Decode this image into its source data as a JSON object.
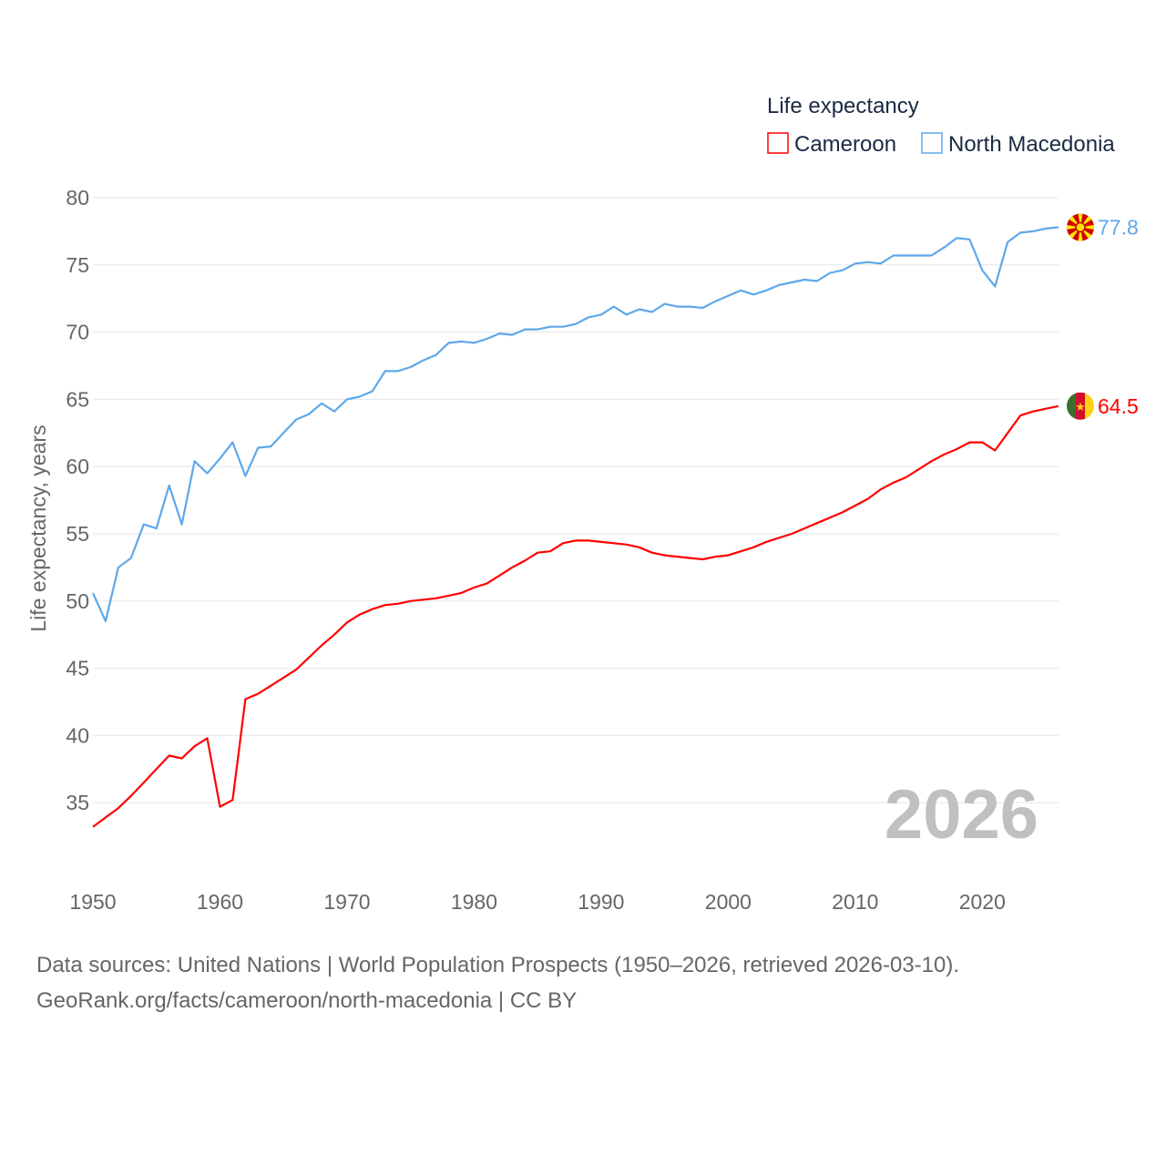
{
  "chart_data": {
    "type": "line",
    "xlabel": "",
    "ylabel": "Life expectancy, years",
    "xlim": [
      1950,
      2026
    ],
    "ylim": [
      32,
      80
    ],
    "yticks": [
      35,
      40,
      45,
      50,
      55,
      60,
      65,
      70,
      75,
      80
    ],
    "xticks": [
      1950,
      1960,
      1970,
      1980,
      1990,
      2000,
      2010,
      2020
    ],
    "grid": true,
    "legend": {
      "title": "Life expectancy",
      "position": "top-right"
    },
    "year_label": "2026",
    "x": [
      1950,
      1951,
      1952,
      1953,
      1954,
      1955,
      1956,
      1957,
      1958,
      1959,
      1960,
      1961,
      1962,
      1963,
      1964,
      1965,
      1966,
      1967,
      1968,
      1969,
      1970,
      1971,
      1972,
      1973,
      1974,
      1975,
      1976,
      1977,
      1978,
      1979,
      1980,
      1981,
      1982,
      1983,
      1984,
      1985,
      1986,
      1987,
      1988,
      1989,
      1990,
      1991,
      1992,
      1993,
      1994,
      1995,
      1996,
      1997,
      1998,
      1999,
      2000,
      2001,
      2002,
      2003,
      2004,
      2005,
      2006,
      2007,
      2008,
      2009,
      2010,
      2011,
      2012,
      2013,
      2014,
      2015,
      2016,
      2017,
      2018,
      2019,
      2020,
      2021,
      2022,
      2023,
      2024,
      2025,
      2026
    ],
    "series": [
      {
        "name": "Cameroon",
        "color": "#ff0000",
        "end_label": "64.5",
        "flag": "cameroon-flag",
        "values": [
          33.2,
          33.9,
          34.6,
          35.5,
          36.5,
          37.5,
          38.5,
          38.3,
          39.2,
          39.8,
          34.7,
          35.2,
          42.7,
          43.1,
          43.7,
          44.3,
          44.9,
          45.8,
          46.7,
          47.5,
          48.4,
          49.0,
          49.4,
          49.7,
          49.8,
          50.0,
          50.1,
          50.2,
          50.4,
          50.6,
          51.0,
          51.3,
          51.9,
          52.5,
          53.0,
          53.6,
          53.7,
          54.3,
          54.5,
          54.5,
          54.4,
          54.3,
          54.2,
          54.0,
          53.6,
          53.4,
          53.3,
          53.2,
          53.1,
          53.3,
          53.4,
          53.7,
          54.0,
          54.4,
          54.7,
          55.0,
          55.4,
          55.8,
          56.2,
          56.6,
          57.1,
          57.6,
          58.3,
          58.8,
          59.2,
          59.8,
          60.4,
          60.9,
          61.3,
          61.8,
          61.8,
          61.2,
          62.5,
          63.8,
          64.1,
          64.3,
          64.5
        ]
      },
      {
        "name": "North Macedonia",
        "color": "#5ea8ea",
        "end_label": "77.8",
        "flag": "north-macedonia-flag",
        "values": [
          50.6,
          48.5,
          52.5,
          53.2,
          55.7,
          55.4,
          58.6,
          55.7,
          60.4,
          59.5,
          60.6,
          61.8,
          59.3,
          61.4,
          61.5,
          62.5,
          63.5,
          63.9,
          64.7,
          64.1,
          65.0,
          65.2,
          65.6,
          67.1,
          67.1,
          67.4,
          67.9,
          68.3,
          69.2,
          69.3,
          69.2,
          69.5,
          69.9,
          69.8,
          70.2,
          70.2,
          70.4,
          70.4,
          70.6,
          71.1,
          71.3,
          71.9,
          71.3,
          71.7,
          71.5,
          72.1,
          71.9,
          71.9,
          71.8,
          72.3,
          72.7,
          73.1,
          72.8,
          73.1,
          73.5,
          73.7,
          73.9,
          73.8,
          74.4,
          74.6,
          75.1,
          75.2,
          75.1,
          75.7,
          75.7,
          75.7,
          75.7,
          76.3,
          77.0,
          76.9,
          74.6,
          73.4,
          76.7,
          77.4,
          77.5,
          77.7,
          77.8
        ]
      }
    ]
  },
  "footer": {
    "line1": "Data sources: United Nations | World Population Prospects (1950–2026, retrieved 2026-03-10).",
    "line2": "GeoRank.org/facts/cameroon/north-macedonia | CC BY"
  }
}
